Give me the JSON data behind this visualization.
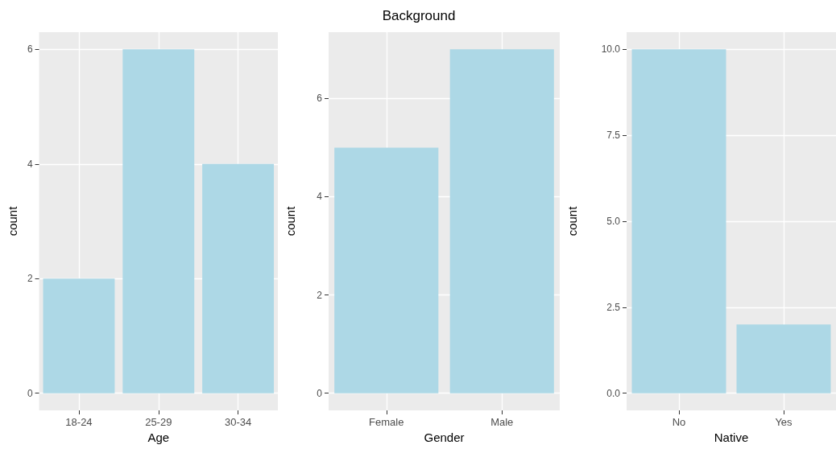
{
  "chart_data": [
    {
      "type": "bar",
      "xlabel": "Age",
      "ylabel": "count",
      "categories": [
        "18-24",
        "25-29",
        "30-34"
      ],
      "values": [
        2,
        6,
        4
      ],
      "color": "#add8e6",
      "ylim": [
        -0.3,
        6.3
      ],
      "yticks": [
        0,
        2,
        4,
        6
      ],
      "grid": true
    },
    {
      "type": "bar",
      "title": "Background",
      "xlabel": "Gender",
      "ylabel": "count",
      "categories": [
        "Female",
        "Male"
      ],
      "values": [
        5,
        7
      ],
      "color": "#add8e6",
      "ylim": [
        -0.35,
        7.35
      ],
      "yticks": [
        0,
        2,
        4,
        6
      ],
      "grid": true
    },
    {
      "type": "bar",
      "xlabel": "Native",
      "ylabel": "count",
      "categories": [
        "No",
        "Yes"
      ],
      "values": [
        10,
        2
      ],
      "color": "#add8e6",
      "ylim": [
        -0.5,
        10.5
      ],
      "yticks": [
        {
          "value": 0,
          "label": "0.0"
        },
        {
          "value": 2.5,
          "label": "2.5"
        },
        {
          "value": 5,
          "label": "5.0"
        },
        {
          "value": 7.5,
          "label": "7.5"
        },
        {
          "value": 10,
          "label": "10.0"
        }
      ],
      "grid": true
    }
  ]
}
